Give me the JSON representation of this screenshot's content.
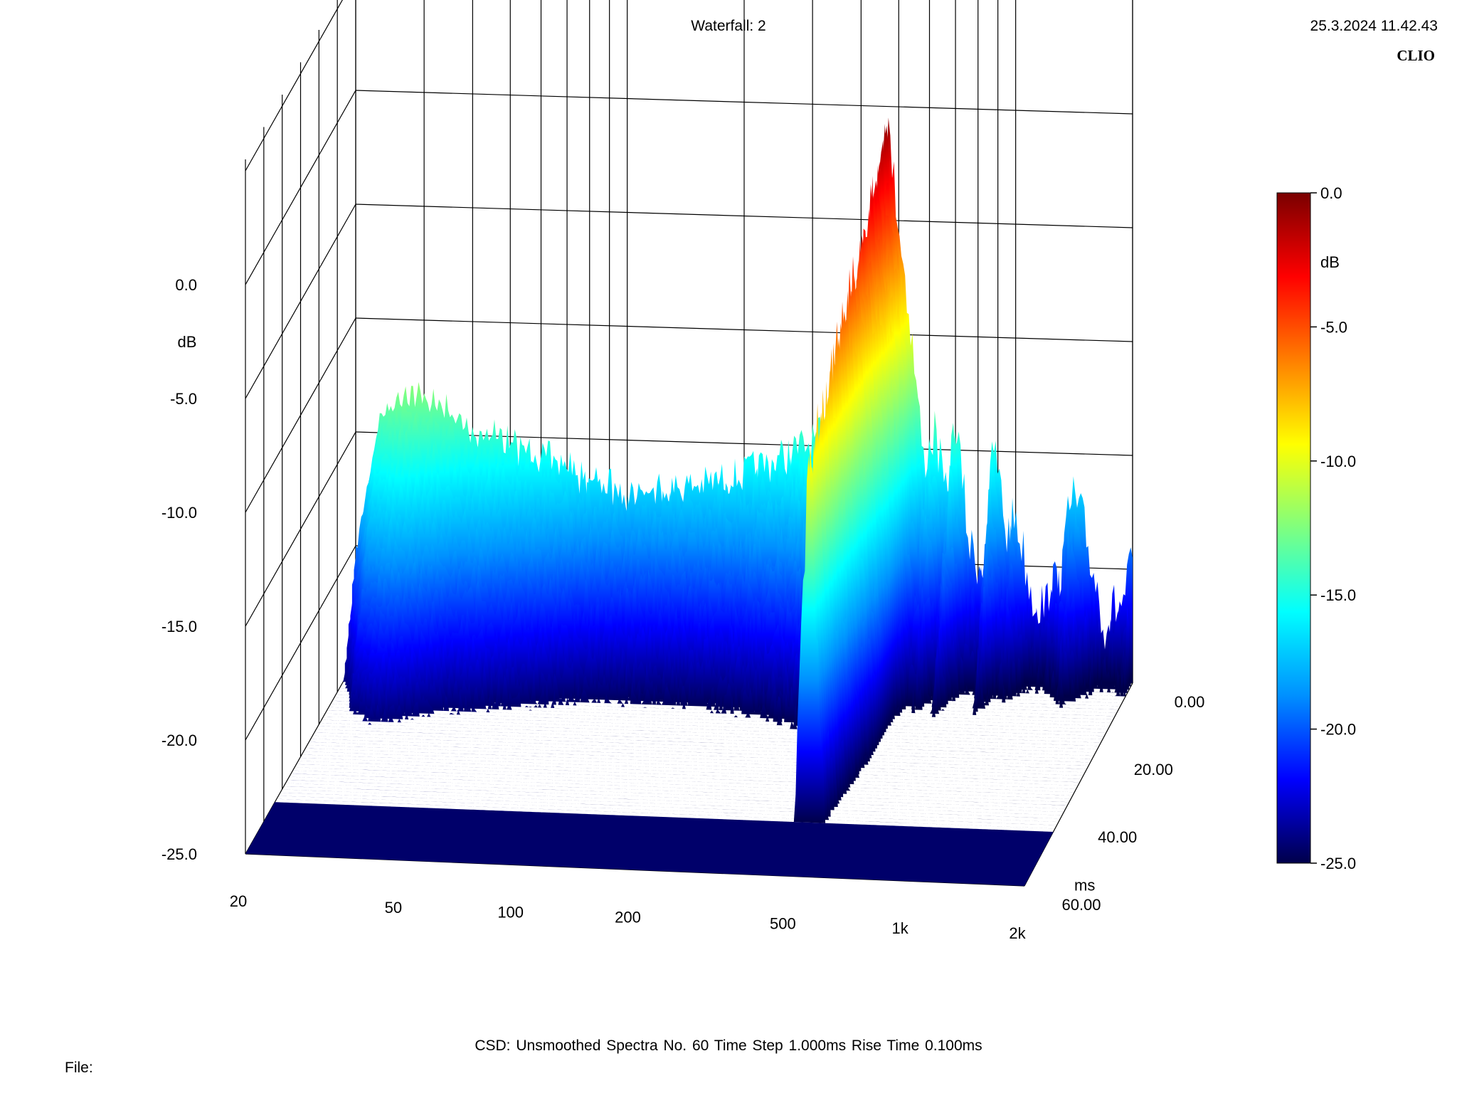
{
  "header": {
    "title": "Waterfall: 2",
    "datetime": "25.3.2024 11.42.43",
    "brand": "CLIO"
  },
  "footer": {
    "settings": "CSD:   Unsmoothed   Spectra No. 60   Time Step 1.000ms   Rise Time 0.100ms",
    "file_label": "File:"
  },
  "chart_data": {
    "type": "waterfall",
    "title": "Waterfall: 2",
    "x_axis": {
      "label": "",
      "scale": "log",
      "range": [
        20,
        2000
      ],
      "tick_values": [
        20,
        50,
        100,
        200,
        500,
        1000,
        2000
      ],
      "tick_labels": [
        "20",
        "50",
        "100",
        "200",
        "500",
        "1k",
        "2k"
      ]
    },
    "y_axis": {
      "label": "dB",
      "range": [
        -25,
        0
      ],
      "tick_values": [
        0,
        -5,
        -10,
        -15,
        -20,
        -25
      ],
      "tick_labels": [
        "0.0",
        "-5.0",
        "-10.0",
        "-15.0",
        "-20.0",
        "-25.0"
      ]
    },
    "z_axis": {
      "label": "ms",
      "range": [
        0,
        60
      ],
      "tick_values": [
        0,
        20,
        40,
        60
      ],
      "tick_labels": [
        "0.00",
        "20.00",
        "40.00",
        "60.00"
      ]
    },
    "colorbar": {
      "label": "dB",
      "range": [
        -25,
        0
      ],
      "tick_values": [
        0,
        -5,
        -10,
        -15,
        -20,
        -25
      ],
      "tick_labels": [
        "0.0",
        "-5.0",
        "-10.0",
        "-15.0",
        "-20.0",
        "-25.0"
      ],
      "colors": [
        "#00004a",
        "#0000ff",
        "#0090ff",
        "#00ffff",
        "#7fff7f",
        "#ffff00",
        "#ff7f00",
        "#ff0000",
        "#7a0000"
      ]
    },
    "spectra_count": 60,
    "time_step_ms": 1.0,
    "rise_time_ms": 0.1,
    "smoothing": "Unsmoothed",
    "first_slice_db": {
      "freq_hz": [
        20,
        23,
        27,
        30,
        35,
        40,
        45,
        50,
        60,
        70,
        80,
        100,
        130,
        160,
        200,
        260,
        330,
        380,
        420,
        440,
        470,
        500,
        540,
        580,
        620,
        660,
        700,
        760,
        820,
        880,
        950,
        1000,
        1100,
        1200,
        1300,
        1400,
        1500,
        1700,
        1900,
        2000
      ],
      "level_db": [
        -20,
        -14,
        -12.8,
        -13,
        -13.6,
        -14.5,
        -14.3,
        -14.8,
        -15.2,
        -15.6,
        -16.2,
        -16.6,
        -16.3,
        -16,
        -15.5,
        -14.5,
        -13.5,
        -12.5,
        -9,
        -5,
        0,
        -4,
        -9,
        -14.5,
        -13,
        -16,
        -12.5,
        -18,
        -19,
        -13.5,
        -17.5,
        -16.5,
        -20,
        -20.5,
        -19,
        -15.5,
        -17,
        -21,
        -20,
        -18.5
      ]
    }
  }
}
